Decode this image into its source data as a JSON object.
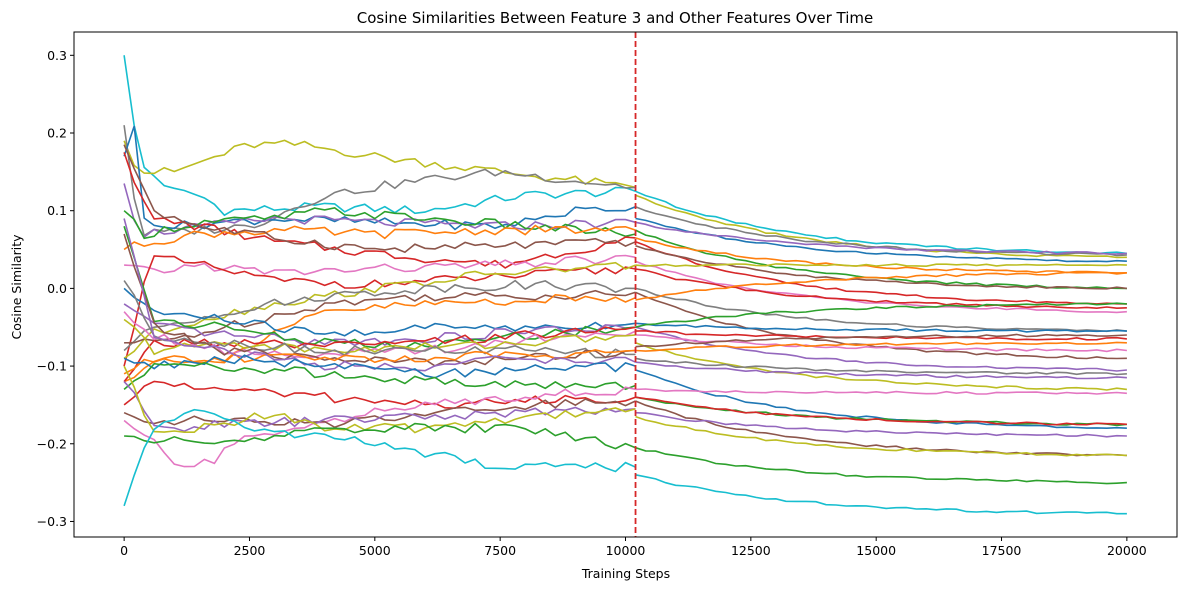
{
  "chart_data": {
    "type": "line",
    "title": "Cosine Similarities Between Feature 3 and Other Features Over Time",
    "xlabel": "Training Steps",
    "ylabel": "Cosine Similarity",
    "xlim": [
      -1000,
      21000
    ],
    "ylim": [
      -0.32,
      0.33
    ],
    "x_ticks": [
      0,
      2500,
      5000,
      7500,
      10000,
      12500,
      15000,
      17500,
      20000
    ],
    "x_tick_labels": [
      "0",
      "2500",
      "5000",
      "7500",
      "10000",
      "12500",
      "15000",
      "17500",
      "20000"
    ],
    "y_ticks": [
      -0.3,
      -0.2,
      -0.1,
      0.0,
      0.1,
      0.2,
      0.3
    ],
    "y_tick_labels": [
      "−0.3",
      "−0.2",
      "−0.1",
      "0.0",
      "0.1",
      "0.2",
      "0.3"
    ],
    "grid": false,
    "legend": "none",
    "vline": {
      "x": 10200,
      "color": "#d62728",
      "style": "dashed"
    },
    "break_x": 10200,
    "end_x": 20000,
    "series": [
      {
        "color": "#17becf",
        "start": 0.3,
        "points": [
          [
            300,
            0.16
          ],
          [
            1000,
            0.125
          ],
          [
            1500,
            0.12
          ],
          [
            2000,
            0.1
          ],
          [
            4000,
            0.105
          ],
          [
            6000,
            0.1
          ],
          [
            8000,
            0.12
          ],
          [
            10200,
            0.125
          ]
        ],
        "post": [
          0.125,
          0.045
        ]
      },
      {
        "color": "#bcbd22",
        "start": 0.19,
        "points": [
          [
            300,
            0.15
          ],
          [
            1000,
            0.15
          ],
          [
            2500,
            0.185
          ],
          [
            3500,
            0.185
          ],
          [
            5000,
            0.17
          ],
          [
            7500,
            0.15
          ],
          [
            10200,
            0.13
          ]
        ],
        "post": [
          0.12,
          0.04
        ]
      },
      {
        "color": "#7f7f7f",
        "start": 0.21,
        "points": [
          [
            300,
            0.07
          ],
          [
            1500,
            0.075
          ],
          [
            2500,
            0.08
          ],
          [
            4000,
            0.12
          ],
          [
            6000,
            0.14
          ],
          [
            7500,
            0.15
          ],
          [
            10200,
            0.13
          ]
        ],
        "post": [
          0.105,
          0.043
        ]
      },
      {
        "color": "#1f77b4",
        "start": 0.17,
        "points": [
          [
            200,
            0.205
          ],
          [
            400,
            0.09
          ],
          [
            1000,
            0.08
          ],
          [
            3000,
            0.09
          ],
          [
            5000,
            0.085
          ],
          [
            7500,
            0.08
          ],
          [
            9000,
            0.1
          ],
          [
            10200,
            0.105
          ]
        ],
        "post": [
          0.09,
          0.035
        ]
      },
      {
        "color": "#9467bd",
        "start": 0.135,
        "points": [
          [
            300,
            0.07
          ],
          [
            1000,
            0.075
          ],
          [
            3000,
            0.09
          ],
          [
            5000,
            0.085
          ],
          [
            7500,
            0.08
          ],
          [
            10200,
            0.085
          ]
        ],
        "post": [
          0.085,
          0.045
        ]
      },
      {
        "color": "#2ca02c",
        "start": 0.1,
        "points": [
          [
            400,
            0.07
          ],
          [
            1500,
            0.085
          ],
          [
            3000,
            0.09
          ],
          [
            4000,
            0.1
          ],
          [
            6000,
            0.09
          ],
          [
            8000,
            0.08
          ],
          [
            10200,
            0.07
          ]
        ],
        "post": [
          0.075,
          0.0
        ]
      },
      {
        "color": "#d62728",
        "start": 0.175,
        "points": [
          [
            500,
            0.09
          ],
          [
            1500,
            0.08
          ],
          [
            3000,
            0.06
          ],
          [
            5000,
            0.045
          ],
          [
            7500,
            0.03
          ],
          [
            10200,
            0.065
          ]
        ],
        "post": [
          0.06,
          -0.02
        ]
      },
      {
        "color": "#ff7f0e",
        "start": 0.05,
        "points": [
          [
            500,
            0.06
          ],
          [
            1500,
            0.07
          ],
          [
            3000,
            0.075
          ],
          [
            5000,
            0.07
          ],
          [
            7500,
            0.075
          ],
          [
            10200,
            0.075
          ]
        ],
        "post": [
          0.065,
          0.02
        ]
      },
      {
        "color": "#8c564b",
        "start": 0.185,
        "points": [
          [
            600,
            0.1
          ],
          [
            1500,
            0.08
          ],
          [
            3000,
            0.065
          ],
          [
            5000,
            0.05
          ],
          [
            7500,
            0.055
          ],
          [
            10200,
            0.06
          ]
        ],
        "post": [
          0.055,
          0.0
        ]
      },
      {
        "color": "#e377c2",
        "start": 0.03,
        "points": [
          [
            500,
            0.02
          ],
          [
            1500,
            0.03
          ],
          [
            3000,
            0.02
          ],
          [
            5000,
            0.025
          ],
          [
            7500,
            0.03
          ],
          [
            10200,
            0.04
          ]
        ],
        "post": [
          0.035,
          -0.03
        ]
      },
      {
        "color": "#d62728",
        "start": -0.1,
        "points": [
          [
            500,
            0.04
          ],
          [
            1500,
            0.03
          ],
          [
            3000,
            0.01
          ],
          [
            5000,
            0.005
          ],
          [
            7500,
            0.015
          ],
          [
            10200,
            0.025
          ]
        ],
        "post": [
          0.025,
          -0.025
        ]
      },
      {
        "color": "#bcbd22",
        "start": -0.09,
        "points": [
          [
            500,
            -0.06
          ],
          [
            1500,
            -0.04
          ],
          [
            3000,
            -0.02
          ],
          [
            5000,
            0.0
          ],
          [
            7500,
            0.02
          ],
          [
            10200,
            0.03
          ]
        ],
        "post": [
          0.03,
          0.03
        ]
      },
      {
        "color": "#7f7f7f",
        "start": -0.08,
        "points": [
          [
            600,
            -0.05
          ],
          [
            2000,
            -0.03
          ],
          [
            4000,
            -0.01
          ],
          [
            6000,
            0.0
          ],
          [
            8000,
            0.005
          ],
          [
            10200,
            0.0
          ]
        ],
        "post": [
          0.0,
          -0.055
        ]
      },
      {
        "color": "#8c564b",
        "start": -0.07,
        "points": [
          [
            600,
            -0.07
          ],
          [
            2000,
            -0.05
          ],
          [
            4000,
            -0.02
          ],
          [
            6000,
            -0.01
          ],
          [
            8000,
            -0.01
          ],
          [
            10200,
            -0.005
          ]
        ],
        "post": [
          -0.005,
          -0.09
        ]
      },
      {
        "color": "#ff7f0e",
        "start": -0.12,
        "points": [
          [
            600,
            -0.09
          ],
          [
            2000,
            -0.09
          ],
          [
            4000,
            -0.03
          ],
          [
            6000,
            -0.02
          ],
          [
            8000,
            -0.015
          ],
          [
            10200,
            -0.012
          ]
        ],
        "post": [
          -0.015,
          0.02
        ]
      },
      {
        "color": "#1f77b4",
        "start": 0.0,
        "points": [
          [
            600,
            -0.03
          ],
          [
            2000,
            -0.04
          ],
          [
            4000,
            -0.06
          ],
          [
            6000,
            -0.05
          ],
          [
            8000,
            -0.05
          ],
          [
            10200,
            -0.045
          ]
        ],
        "post": [
          -0.045,
          -0.055
        ]
      },
      {
        "color": "#9467bd",
        "start": -0.02,
        "points": [
          [
            600,
            -0.05
          ],
          [
            2000,
            -0.06
          ],
          [
            4000,
            -0.07
          ],
          [
            6000,
            -0.065
          ],
          [
            8000,
            -0.055
          ],
          [
            10200,
            -0.05
          ]
        ],
        "post": [
          -0.05,
          -0.105
        ]
      },
      {
        "color": "#2ca02c",
        "start": 0.08,
        "points": [
          [
            600,
            -0.04
          ],
          [
            2000,
            -0.05
          ],
          [
            4000,
            -0.07
          ],
          [
            6000,
            -0.075
          ],
          [
            8000,
            -0.06
          ],
          [
            10200,
            -0.05
          ]
        ],
        "post": [
          -0.05,
          -0.02
        ]
      },
      {
        "color": "#d62728",
        "start": -0.12,
        "points": [
          [
            600,
            -0.07
          ],
          [
            2000,
            -0.07
          ],
          [
            4000,
            -0.075
          ],
          [
            6000,
            -0.07
          ],
          [
            8000,
            -0.06
          ],
          [
            10200,
            -0.05
          ]
        ],
        "post": [
          -0.055,
          -0.065
        ]
      },
      {
        "color": "#e377c2",
        "start": -0.03,
        "points": [
          [
            600,
            -0.06
          ],
          [
            2000,
            -0.08
          ],
          [
            4000,
            -0.085
          ],
          [
            6000,
            -0.08
          ],
          [
            8000,
            -0.065
          ],
          [
            10200,
            -0.055
          ]
        ],
        "post": [
          -0.06,
          -0.08
        ]
      },
      {
        "color": "#bcbd22",
        "start": -0.04,
        "points": [
          [
            600,
            -0.08
          ],
          [
            2000,
            -0.07
          ],
          [
            4000,
            -0.08
          ],
          [
            6000,
            -0.075
          ],
          [
            8000,
            -0.07
          ],
          [
            10200,
            -0.06
          ]
        ],
        "post": [
          -0.07,
          -0.13
        ]
      },
      {
        "color": "#7f7f7f",
        "start": 0.01,
        "points": [
          [
            600,
            -0.06
          ],
          [
            2000,
            -0.07
          ],
          [
            4000,
            -0.08
          ],
          [
            6000,
            -0.08
          ],
          [
            8000,
            -0.08
          ],
          [
            10200,
            -0.085
          ]
        ],
        "post": [
          -0.09,
          -0.11
        ]
      },
      {
        "color": "#8c564b",
        "start": 0.07,
        "points": [
          [
            600,
            -0.05
          ],
          [
            2000,
            -0.08
          ],
          [
            4000,
            -0.09
          ],
          [
            6000,
            -0.095
          ],
          [
            8000,
            -0.09
          ],
          [
            10200,
            -0.08
          ]
        ],
        "post": [
          -0.075,
          -0.06
        ]
      },
      {
        "color": "#ff7f0e",
        "start": -0.11,
        "points": [
          [
            600,
            -0.09
          ],
          [
            2000,
            -0.09
          ],
          [
            4000,
            -0.09
          ],
          [
            6000,
            -0.09
          ],
          [
            8000,
            -0.085
          ],
          [
            10200,
            -0.08
          ]
        ],
        "post": [
          -0.08,
          -0.07
        ]
      },
      {
        "color": "#9467bd",
        "start": 0.09,
        "points": [
          [
            600,
            -0.06
          ],
          [
            2000,
            -0.08
          ],
          [
            4000,
            -0.1
          ],
          [
            6000,
            -0.1
          ],
          [
            8000,
            -0.09
          ],
          [
            10200,
            -0.095
          ]
        ],
        "post": [
          -0.095,
          -0.115
        ]
      },
      {
        "color": "#1f77b4",
        "start": -0.09,
        "points": [
          [
            600,
            -0.1
          ],
          [
            2000,
            -0.09
          ],
          [
            4000,
            -0.1
          ],
          [
            6000,
            -0.11
          ],
          [
            8000,
            -0.105
          ],
          [
            10200,
            -0.1
          ]
        ],
        "post": [
          -0.105,
          -0.18
        ]
      },
      {
        "color": "#2ca02c",
        "start": -0.13,
        "points": [
          [
            600,
            -0.1
          ],
          [
            2000,
            -0.1
          ],
          [
            4000,
            -0.11
          ],
          [
            6000,
            -0.12
          ],
          [
            8000,
            -0.125
          ],
          [
            10200,
            -0.125
          ]
        ],
        "post": [
          -0.14,
          -0.175
        ]
      },
      {
        "color": "#d62728",
        "start": -0.15,
        "points": [
          [
            600,
            -0.12
          ],
          [
            2000,
            -0.13
          ],
          [
            4000,
            -0.14
          ],
          [
            6000,
            -0.15
          ],
          [
            8000,
            -0.145
          ],
          [
            10200,
            -0.14
          ]
        ],
        "post": [
          -0.14,
          -0.175
        ]
      },
      {
        "color": "#e377c2",
        "start": -0.17,
        "points": [
          [
            600,
            -0.2
          ],
          [
            1000,
            -0.23
          ],
          [
            1800,
            -0.22
          ],
          [
            2500,
            -0.19
          ],
          [
            4000,
            -0.17
          ],
          [
            5500,
            -0.155
          ],
          [
            7500,
            -0.14
          ],
          [
            10200,
            -0.13
          ]
        ],
        "post": [
          -0.13,
          -0.135
        ]
      },
      {
        "color": "#8c564b",
        "start": -0.16,
        "points": [
          [
            600,
            -0.17
          ],
          [
            2000,
            -0.17
          ],
          [
            4000,
            -0.175
          ],
          [
            6000,
            -0.16
          ],
          [
            8000,
            -0.15
          ],
          [
            10200,
            -0.145
          ]
        ],
        "post": [
          -0.145,
          -0.215
        ]
      },
      {
        "color": "#9467bd",
        "start": -0.12,
        "points": [
          [
            600,
            -0.18
          ],
          [
            2000,
            -0.175
          ],
          [
            4000,
            -0.17
          ],
          [
            6000,
            -0.165
          ],
          [
            8000,
            -0.16
          ],
          [
            10200,
            -0.155
          ]
        ],
        "post": [
          -0.16,
          -0.19
        ]
      },
      {
        "color": "#bcbd22",
        "start": -0.1,
        "points": [
          [
            600,
            -0.19
          ],
          [
            1500,
            -0.18
          ],
          [
            3000,
            -0.16
          ],
          [
            4000,
            -0.18
          ],
          [
            6000,
            -0.18
          ],
          [
            8000,
            -0.165
          ],
          [
            10200,
            -0.155
          ]
        ],
        "post": [
          -0.165,
          -0.215
        ]
      },
      {
        "color": "#2ca02c",
        "start": -0.19,
        "points": [
          [
            600,
            -0.195
          ],
          [
            2000,
            -0.2
          ],
          [
            4000,
            -0.18
          ],
          [
            6000,
            -0.18
          ],
          [
            8000,
            -0.18
          ],
          [
            10200,
            -0.205
          ]
        ],
        "post": [
          -0.205,
          -0.25
        ]
      },
      {
        "color": "#17becf",
        "start": -0.28,
        "points": [
          [
            300,
            -0.22
          ],
          [
            700,
            -0.17
          ],
          [
            1500,
            -0.16
          ],
          [
            3000,
            -0.185
          ],
          [
            5000,
            -0.2
          ],
          [
            7500,
            -0.23
          ],
          [
            10200,
            -0.23
          ]
        ],
        "post": [
          -0.24,
          -0.29
        ]
      }
    ]
  }
}
